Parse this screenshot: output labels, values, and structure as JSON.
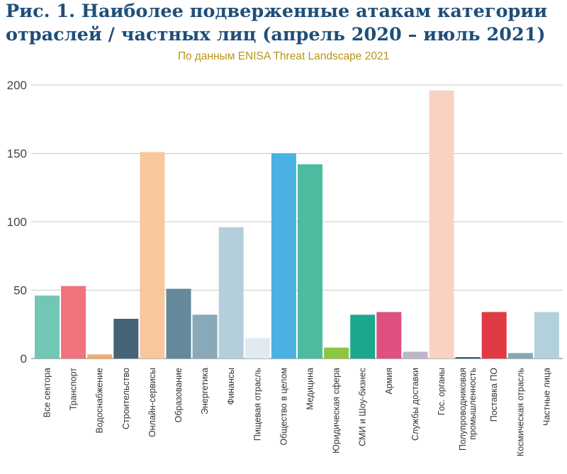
{
  "header": {
    "title_line1": "Рис. 1. Наиболее подверженные атакам категории",
    "title_line2": "отраслей / частных лиц (апрель 2020 – июль 2021)",
    "subtitle": "По данным ENISA Threat Landscape 2021"
  },
  "chart_data": {
    "type": "bar",
    "title": "Рис. 1. Наиболее подверженные атакам категории отраслей / частных лиц (апрель 2020 – июль 2021)",
    "subtitle": "По данным ENISA Threat Landscape 2021",
    "xlabel": "",
    "ylabel": "",
    "ylim": [
      0,
      200
    ],
    "yticks": [
      0,
      50,
      100,
      150,
      200
    ],
    "grid": true,
    "legend": "none",
    "categories": [
      "Все сектора",
      "Транспорт",
      "Водоснабжение",
      "Строительство",
      "Онлайн-сервисы",
      "Образование",
      "Энергетика",
      "Финансы",
      "Пищевая отрасль",
      "Общество в целом",
      "Медицина",
      "Юридическая сфера",
      "СМИ и Шоу-бизнес",
      "Армия",
      "Службы доставки",
      "Гос. органы",
      "Полупроводниковая промышленность",
      "Поставка ПО",
      "Космическая отрасль",
      "Частные лица"
    ],
    "category_label_lines": [
      [
        "Все сектора"
      ],
      [
        "Транспорт"
      ],
      [
        "Водоснабжение"
      ],
      [
        "Строительство"
      ],
      [
        "Онлайн-сервисы"
      ],
      [
        "Образование"
      ],
      [
        "Энергетика"
      ],
      [
        "Финансы"
      ],
      [
        "Пищевая отрасль"
      ],
      [
        "Общество в целом"
      ],
      [
        "Медицина"
      ],
      [
        "Юридическая сфера"
      ],
      [
        "СМИ и Шоу-бизнес"
      ],
      [
        "Армия"
      ],
      [
        "Службы доставки"
      ],
      [
        "Гос. органы"
      ],
      [
        "Полупроводниковая",
        "промышленность"
      ],
      [
        "Поставка ПО"
      ],
      [
        "Космическая отрасль"
      ],
      [
        "Частные лица"
      ]
    ],
    "values": [
      46,
      53,
      3,
      29,
      151,
      51,
      32,
      96,
      15,
      150,
      142,
      8,
      32,
      34,
      5,
      196,
      1,
      34,
      4,
      34
    ],
    "colors": [
      "#72c6b4",
      "#ef727d",
      "#f3ab72",
      "#456376",
      "#f8c79d",
      "#63899a",
      "#88a9b8",
      "#b3cfdc",
      "#e0ebf1",
      "#4ab1e3",
      "#4bbc9f",
      "#8cc540",
      "#1aa98c",
      "#de5080",
      "#bcb6c8",
      "#fad2c3",
      "#21586d",
      "#e13a44",
      "#87a7b4",
      "#b3d1db"
    ]
  }
}
